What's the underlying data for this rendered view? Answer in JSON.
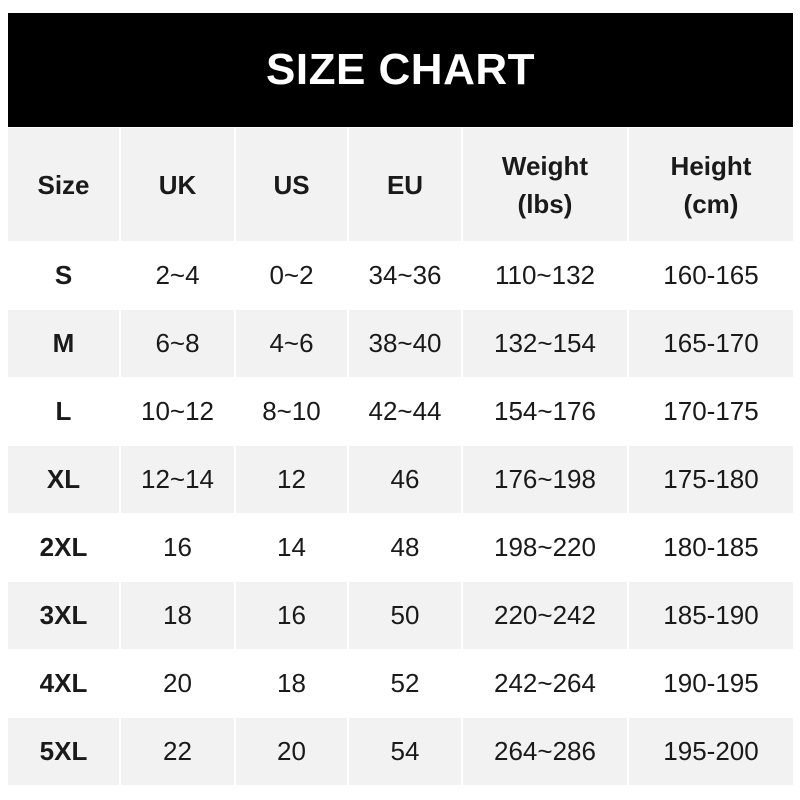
{
  "title": "SIZE CHART",
  "headers": [
    "Size",
    "UK",
    "US",
    "EU",
    "Weight\n(lbs)",
    "Height\n(cm)"
  ],
  "rows": [
    [
      "S",
      "2~4",
      "0~2",
      "34~36",
      "110~132",
      "160-165"
    ],
    [
      "M",
      "6~8",
      "4~6",
      "38~40",
      "132~154",
      "165-170"
    ],
    [
      "L",
      "10~12",
      "8~10",
      "42~44",
      "154~176",
      "170-175"
    ],
    [
      "XL",
      "12~14",
      "12",
      "46",
      "176~198",
      "175-180"
    ],
    [
      "2XL",
      "16",
      "14",
      "48",
      "198~220",
      "180-185"
    ],
    [
      "3XL",
      "18",
      "16",
      "50",
      "220~242",
      "185-190"
    ],
    [
      "4XL",
      "20",
      "18",
      "52",
      "242~264",
      "190-195"
    ],
    [
      "5XL",
      "22",
      "20",
      "54",
      "264~286",
      "195-200"
    ]
  ],
  "colors": {
    "title_bg": "#000000",
    "stripe": "#f2f2f2"
  }
}
